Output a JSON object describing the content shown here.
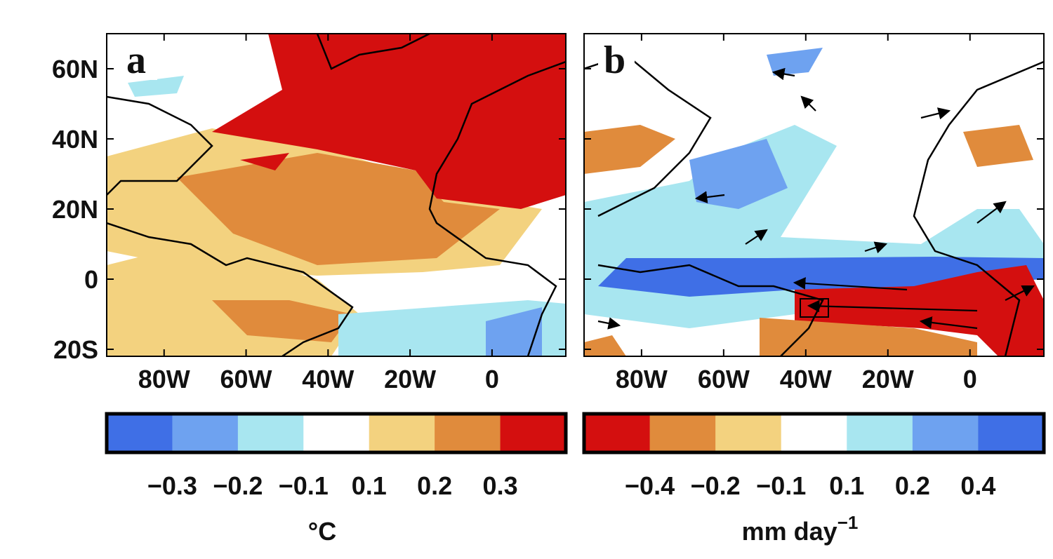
{
  "panels": [
    {
      "label": "a",
      "lat_range": [
        -22,
        70
      ],
      "lon_range": [
        -94,
        18
      ],
      "lat_ticks": [
        {
          "value": 60,
          "label": "60N"
        },
        {
          "value": 40,
          "label": "40N"
        },
        {
          "value": 20,
          "label": "20N"
        },
        0,
        {
          "value": -20,
          "label": "20S"
        }
      ],
      "lon_ticks": [
        {
          "value": -80,
          "label": "80W"
        },
        {
          "value": -60,
          "label": "60W"
        },
        {
          "value": -40,
          "label": "40W"
        },
        {
          "value": -20,
          "label": "20W"
        },
        0
      ],
      "colorbar": {
        "colors": [
          "#3f6fe6",
          "#6ea2f0",
          "#a8e6f0",
          "#ffffff",
          "#f3d27f",
          "#e08b3c",
          "#d40f0f"
        ],
        "ticks": [
          {
            "value": -0.3,
            "label": "−0.3"
          },
          {
            "value": -0.2,
            "label": "−0.2"
          },
          {
            "value": -0.1,
            "label": "−0.1"
          },
          0.1,
          0.2,
          0.3
        ],
        "unit": "°C"
      }
    },
    {
      "label": "b",
      "lat_range": [
        -22,
        70
      ],
      "lon_range": [
        -94,
        18
      ],
      "lon_ticks": [
        {
          "value": -80,
          "label": "80W"
        },
        {
          "value": -60,
          "label": "60W"
        },
        {
          "value": -40,
          "label": "40W"
        },
        {
          "value": -20,
          "label": "20W"
        },
        0
      ],
      "colorbar": {
        "colors": [
          "#d40f0f",
          "#e08b3c",
          "#f3d27f",
          "#ffffff",
          "#a8e6f0",
          "#6ea2f0",
          "#3f6fe6"
        ],
        "ticks": [
          {
            "value": -0.4,
            "label": "−0.4"
          },
          {
            "value": -0.2,
            "label": "−0.2"
          },
          {
            "value": -0.1,
            "label": "−0.1"
          },
          0.1,
          0.2,
          0.4
        ],
        "unit": "mm day",
        "unit_superscript": "−1"
      }
    }
  ]
}
